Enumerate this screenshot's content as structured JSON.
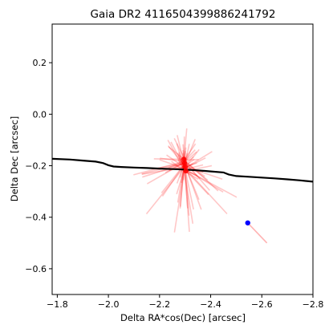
{
  "chart_data": {
    "type": "scatter",
    "title": "Gaia DR2 4116504399886241792",
    "xlabel": "Delta RA*cos(Dec) [arcsec]",
    "ylabel": "Delta Dec [arcsec]",
    "xlim": [
      -1.78,
      -2.8
    ],
    "ylim": [
      -0.7,
      0.35
    ],
    "x_inverted": true,
    "grid": false,
    "xticks": [
      -1.8,
      -2.0,
      -2.2,
      -2.4,
      -2.6,
      -2.8
    ],
    "xtick_labels": [
      "−1.8",
      "−2.0",
      "−2.2",
      "−2.4",
      "−2.6",
      "−2.8"
    ],
    "yticks": [
      0.2,
      0.0,
      -0.2,
      -0.4,
      -0.6
    ],
    "ytick_labels": [
      "0.2",
      "0.0",
      "−0.2",
      "−0.4",
      "−0.6"
    ],
    "colors": {
      "track": "#000000",
      "samples": "#ff0000",
      "reference": "#0000ff"
    },
    "track": {
      "x": [
        -1.78,
        -1.85,
        -1.9,
        -1.95,
        -1.98,
        -2.0,
        -2.02,
        -2.05,
        -2.1,
        -2.15,
        -2.2,
        -2.25,
        -2.3,
        -2.35,
        -2.4,
        -2.45,
        -2.47,
        -2.5,
        -2.55,
        -2.6,
        -2.65,
        -2.7,
        -2.75,
        -2.8
      ],
      "y": [
        -0.173,
        -0.176,
        -0.18,
        -0.184,
        -0.19,
        -0.198,
        -0.203,
        -0.205,
        -0.207,
        -0.209,
        -0.211,
        -0.213,
        -0.215,
        -0.218,
        -0.222,
        -0.226,
        -0.234,
        -0.24,
        -0.243,
        -0.246,
        -0.249,
        -0.253,
        -0.257,
        -0.262
      ]
    },
    "center_points": [
      {
        "x": -2.295,
        "y": -0.175
      },
      {
        "x": -2.298,
        "y": -0.19
      },
      {
        "x": -2.301,
        "y": -0.205
      },
      {
        "x": -2.303,
        "y": -0.22
      }
    ],
    "reference_point": {
      "x": -2.545,
      "y": -0.422
    },
    "reference_track": {
      "x0": -2.545,
      "y0": -0.422,
      "x1": -2.62,
      "y1": -0.5
    }
  }
}
